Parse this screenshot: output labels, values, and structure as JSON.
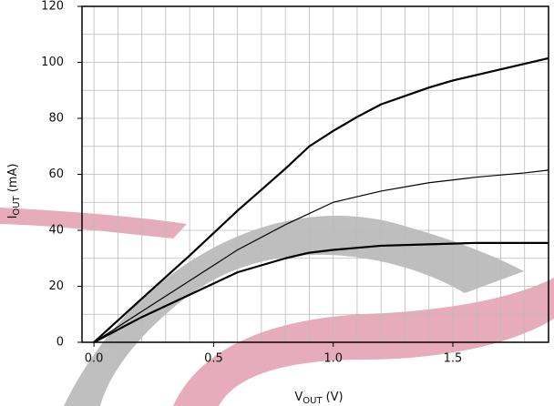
{
  "chart_data": {
    "type": "line",
    "xlabel": {
      "main": "V",
      "sub": "OUT",
      "rest": "(V)"
    },
    "ylabel": {
      "main": "I",
      "sub": "OUT",
      "rest": "(mA)"
    },
    "xlim": [
      -0.05,
      1.9
    ],
    "ylim": [
      0,
      120
    ],
    "xticks": [
      {
        "value": 0,
        "label": "0.0"
      },
      {
        "value": 0.5,
        "label": "0.5"
      },
      {
        "value": 1,
        "label": "1.0"
      },
      {
        "value": 1.5,
        "label": "1.5"
      }
    ],
    "yticks": [
      0,
      20,
      40,
      60,
      80,
      100,
      120
    ],
    "x_grid": [
      0,
      0.1,
      0.2,
      0.3,
      0.4,
      0.5,
      0.6,
      0.7,
      0.8,
      0.9,
      1,
      1.1,
      1.2,
      1.3,
      1.4,
      1.5,
      1.6,
      1.7,
      1.8
    ],
    "y_grid": [
      10,
      20,
      30,
      40,
      50,
      60,
      70,
      80,
      90,
      100,
      110
    ],
    "grid": true,
    "series": [
      {
        "color": "#000000",
        "width": 2.2,
        "x": [
          0,
          0.1,
          0.2,
          0.3,
          0.4,
          0.5,
          0.6,
          0.7,
          0.8,
          0.9,
          1,
          1.1,
          1.2,
          1.3,
          1.4,
          1.5,
          1.6,
          1.7,
          1.8,
          1.9
        ],
        "values": [
          0,
          7.8,
          15.6,
          23.3,
          31,
          39,
          47,
          54.5,
          62,
          70,
          75.5,
          80.5,
          85,
          88,
          91,
          93.5,
          95.5,
          97.5,
          99.5,
          101.5
        ]
      },
      {
        "color": "#000000",
        "width": 1.2,
        "x": [
          0,
          0.2,
          0.4,
          0.6,
          0.8,
          0.9,
          1,
          1.1,
          1.2,
          1.4,
          1.6,
          1.8,
          1.9
        ],
        "values": [
          0,
          11,
          22,
          33,
          42,
          46,
          50,
          52,
          54,
          57,
          59,
          60.5,
          61.5
        ]
      },
      {
        "color": "#000000",
        "width": 2.2,
        "x": [
          0,
          0.2,
          0.4,
          0.6,
          0.8,
          0.9,
          1,
          1.2,
          1.4,
          1.6,
          1.9
        ],
        "values": [
          0,
          9,
          17,
          25,
          30,
          32,
          33,
          34.5,
          35,
          35.5,
          35.5
        ]
      }
    ]
  }
}
